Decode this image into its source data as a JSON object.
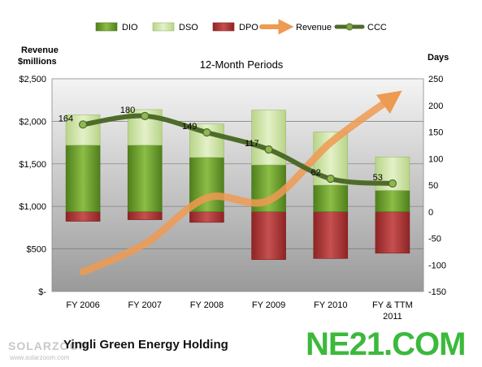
{
  "colors": {
    "dio": "#6a9a2a",
    "dso": "#cfe4a4",
    "dpo": "#b03a3a",
    "revenue": "#ee9a52",
    "ccc": "#4f6b2a",
    "plot_top": "#f4f4f4",
    "plot_bottom": "#9a9a9a"
  },
  "chart_data": {
    "type": "bar",
    "title": "12-Month Periods",
    "categories": [
      "FY 2006",
      "FY 2007",
      "FY 2008",
      "FY 2009",
      "FY 2010",
      "FY & TTM 2011"
    ],
    "left_axis": {
      "label_line1": "Revenue",
      "label_line2": "$millions",
      "ticks": [
        "$-",
        "$500",
        "$1,000",
        "$1,500",
        "$2,000",
        "$2,500"
      ],
      "ylim": [
        0,
        2500
      ]
    },
    "right_axis": {
      "label": "Days",
      "ticks": [
        "-150",
        "-100",
        "-50",
        "0",
        "50",
        "100",
        "150",
        "200",
        "250"
      ],
      "ylim": [
        -150,
        250
      ]
    },
    "legend_position": "top",
    "legend": [
      "DIO",
      "DSO",
      "DPO",
      "Revenue",
      "CCC"
    ],
    "series": [
      {
        "name": "DIO",
        "axis": "right",
        "values": [
          125,
          125,
          102,
          88,
          50,
          40
        ]
      },
      {
        "name": "DSO",
        "axis": "right",
        "values": [
          57,
          67,
          63,
          103,
          100,
          63
        ]
      },
      {
        "name": "DPO",
        "axis": "right",
        "values": [
          -18,
          -15,
          -20,
          -90,
          -88,
          -78
        ]
      },
      {
        "name": "Revenue",
        "axis": "left",
        "values": [
          230,
          560,
          1100,
          1070,
          1750,
          2280
        ]
      },
      {
        "name": "CCC",
        "axis": "right",
        "values": [
          164,
          180,
          149,
          117,
          62,
          53
        ]
      }
    ]
  },
  "footer": {
    "company": "Yingli Green Energy Holding",
    "watermark_brand": "SOLARZOOM",
    "watermark_url": "www.solarzoom.com",
    "logo": "NE21.COM"
  }
}
